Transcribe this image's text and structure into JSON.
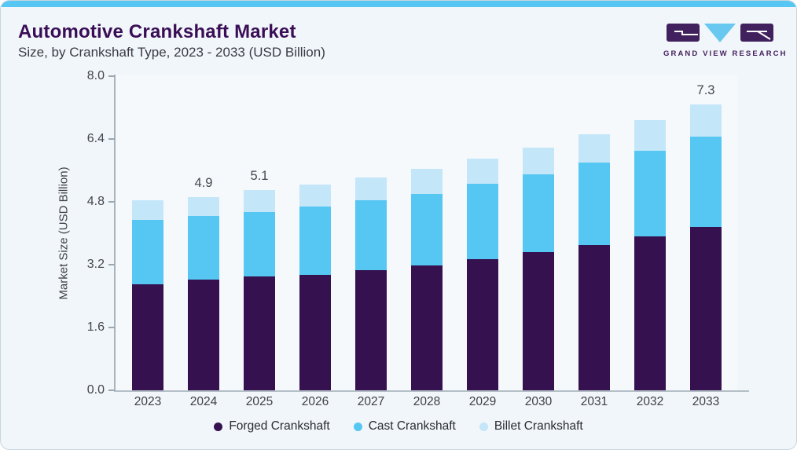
{
  "header": {
    "title": "Automotive Crankshaft Market",
    "subtitle": "Size, by Crankshaft Type, 2023 - 2033 (USD Billion)"
  },
  "logo": {
    "text": "GRAND VIEW RESEARCH"
  },
  "chart_data": {
    "type": "bar",
    "stacked": true,
    "title": "Automotive Crankshaft Market",
    "subtitle": "Size, by Crankshaft Type, 2023 - 2033 (USD Billion)",
    "xlabel": "",
    "ylabel": "Market Size (USD Billion)",
    "categories": [
      "2023",
      "2024",
      "2025",
      "2026",
      "2027",
      "2028",
      "2029",
      "2030",
      "2031",
      "2032",
      "2033"
    ],
    "series": [
      {
        "name": "Forged Crankshaft",
        "color": "#36114F",
        "values": [
          2.71,
          2.82,
          2.91,
          2.95,
          3.07,
          3.18,
          3.35,
          3.52,
          3.71,
          3.92,
          4.17
        ]
      },
      {
        "name": "Cast Crankshaft",
        "color": "#56C7F2",
        "values": [
          1.64,
          1.62,
          1.64,
          1.73,
          1.77,
          1.83,
          1.91,
          1.99,
          2.09,
          2.19,
          2.29
        ]
      },
      {
        "name": "Billet Crankshaft",
        "color": "#C3E6F9",
        "values": [
          0.49,
          0.49,
          0.55,
          0.56,
          0.58,
          0.63,
          0.64,
          0.67,
          0.72,
          0.78,
          0.83
        ]
      }
    ],
    "totals": [
      4.8,
      4.9,
      5.1,
      5.2,
      5.4,
      5.6,
      5.9,
      6.2,
      6.5,
      6.9,
      7.3
    ],
    "bar_labels": {
      "2024": "4.9",
      "2025": "5.1",
      "2033": "7.3"
    },
    "yticks": [
      0.0,
      1.6,
      3.2,
      4.8,
      6.4,
      8.0
    ],
    "ylim": [
      0,
      8
    ],
    "grid": false,
    "legend_position": "bottom"
  },
  "colors": {
    "accent_strip": "#56C7F2",
    "title": "#3A0E56",
    "logo_purple": "#41215D",
    "logo_triangle": "#68C8F0",
    "logo_text": "#46215E"
  }
}
